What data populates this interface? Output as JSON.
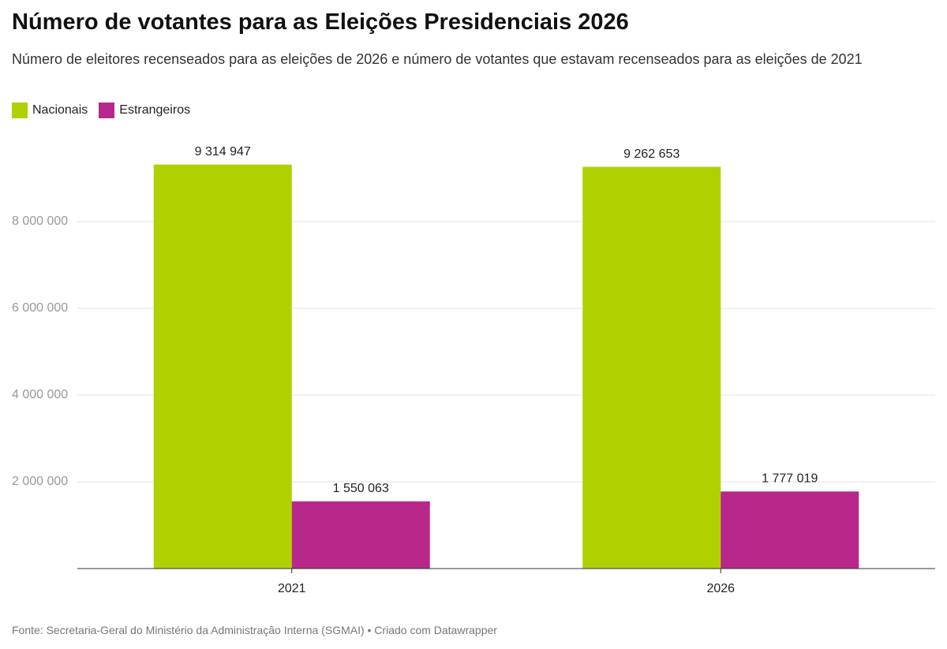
{
  "chart_data": {
    "type": "bar",
    "title": "Número de votantes para as Eleições Presidenciais 2026",
    "subtitle": "Número de eleitores recenseados para as eleições de 2026 e número de votantes que estavam recenseados para as eleições de 2021",
    "categories": [
      "2021",
      "2026"
    ],
    "series": [
      {
        "name": "Nacionais",
        "color": "#b0d000",
        "values": [
          9314947,
          9262653
        ],
        "value_labels": [
          "9 314 947",
          "9 262 653"
        ]
      },
      {
        "name": "Estrangeiros",
        "color": "#b8278a",
        "values": [
          1550063,
          1777019
        ],
        "value_labels": [
          "1 550 063",
          "1 777 019"
        ]
      }
    ],
    "ylim": [
      0,
      10000000
    ],
    "yticks": [
      {
        "value": 2000000,
        "label": "2 000 000"
      },
      {
        "value": 4000000,
        "label": "4 000 000"
      },
      {
        "value": 6000000,
        "label": "6 000 000"
      },
      {
        "value": 8000000,
        "label": "8 000 000"
      }
    ],
    "grid": true,
    "legend": "top-left",
    "source": "Fonte: Secretaria-Geral do Ministério da Administração Interna (SGMAI) • Criado com Datawrapper"
  }
}
